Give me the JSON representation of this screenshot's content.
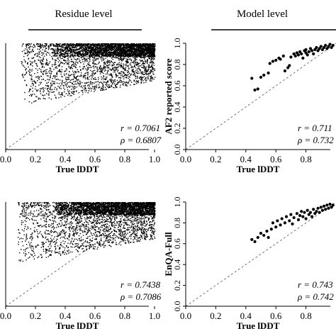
{
  "headers": {
    "left": "Residue level",
    "right": "Model level"
  },
  "colors": {
    "points": "#000000",
    "axes": "#000000",
    "reference_line": "#555555",
    "background": "#ffffff"
  },
  "chart_data": [
    {
      "id": "top-left",
      "type": "scatter",
      "level": "residue",
      "xlabel": "True lDDT",
      "ylabel": "",
      "xlim": [
        0,
        1
      ],
      "ylim": [
        0,
        1
      ],
      "x_ticks": [
        "0.0",
        "0.2",
        "0.4",
        "0.6",
        "0.8",
        "1.0"
      ],
      "y_ticks": [],
      "reference_line": "y = x",
      "stats": {
        "r": "r = 0.7061",
        "rho": "ρ = 0.6807"
      },
      "point_density": "very dense",
      "x_range_of_points": [
        0.1,
        1.0
      ],
      "y_range_of_points": [
        0.25,
        1.0
      ]
    },
    {
      "id": "top-right",
      "type": "scatter",
      "level": "model",
      "xlabel": "True lDDT",
      "ylabel": "AF2 reported score",
      "xlim": [
        0,
        1
      ],
      "ylim": [
        0,
        1
      ],
      "x_ticks": [
        "0.0",
        "0.2",
        "0.4",
        "0.6",
        "0.8"
      ],
      "y_ticks": [
        "0.0",
        "0.2",
        "0.4",
        "0.6",
        "0.8",
        "1.0"
      ],
      "reference_line": "y = x",
      "stats": {
        "r": "r = 0.711",
        "rho": "ρ = 0.732"
      },
      "points": [
        [
          0.44,
          0.67
        ],
        [
          0.46,
          0.56
        ],
        [
          0.48,
          0.57
        ],
        [
          0.5,
          0.68
        ],
        [
          0.52,
          0.7
        ],
        [
          0.55,
          0.72
        ],
        [
          0.56,
          0.81
        ],
        [
          0.58,
          0.83
        ],
        [
          0.6,
          0.84
        ],
        [
          0.62,
          0.86
        ],
        [
          0.63,
          0.85
        ],
        [
          0.65,
          0.88
        ],
        [
          0.66,
          0.74
        ],
        [
          0.68,
          0.77
        ],
        [
          0.69,
          0.79
        ],
        [
          0.7,
          0.87
        ],
        [
          0.72,
          0.9
        ],
        [
          0.73,
          0.88
        ],
        [
          0.74,
          0.91
        ],
        [
          0.75,
          0.89
        ],
        [
          0.76,
          0.92
        ],
        [
          0.77,
          0.9
        ],
        [
          0.78,
          0.86
        ],
        [
          0.79,
          0.93
        ],
        [
          0.8,
          0.91
        ],
        [
          0.8,
          0.94
        ],
        [
          0.81,
          0.89
        ],
        [
          0.82,
          0.92
        ],
        [
          0.83,
          0.95
        ],
        [
          0.84,
          0.93
        ],
        [
          0.85,
          0.9
        ],
        [
          0.86,
          0.94
        ],
        [
          0.87,
          0.96
        ],
        [
          0.88,
          0.93
        ],
        [
          0.89,
          0.95
        ],
        [
          0.9,
          0.97
        ],
        [
          0.91,
          0.94
        ],
        [
          0.92,
          0.96
        ],
        [
          0.93,
          0.98
        ],
        [
          0.94,
          0.95
        ],
        [
          0.95,
          0.97
        ],
        [
          0.96,
          0.99
        ],
        [
          0.97,
          0.96
        ],
        [
          0.98,
          0.98
        ]
      ]
    },
    {
      "id": "bottom-left",
      "type": "scatter",
      "level": "residue",
      "xlabel": "True lDDT",
      "ylabel": "",
      "xlim": [
        0,
        1
      ],
      "ylim": [
        0,
        1
      ],
      "x_ticks": [
        "0.0",
        "0.2",
        "0.4",
        "0.6",
        "0.8",
        "1.0"
      ],
      "y_ticks": [],
      "reference_line": "y = x",
      "stats": {
        "r": "r = 0.7438",
        "rho": "ρ = 0.7086"
      },
      "point_density": "very dense",
      "x_range_of_points": [
        0.08,
        1.0
      ],
      "y_range_of_points": [
        0.1,
        1.0
      ]
    },
    {
      "id": "bottom-right",
      "type": "scatter",
      "level": "model",
      "xlabel": "True lDDT",
      "ylabel": "EnQA-Full",
      "xlim": [
        0,
        1
      ],
      "ylim": [
        0,
        1
      ],
      "x_ticks": [
        "0.0",
        "0.2",
        "0.4",
        "0.6",
        "0.8"
      ],
      "y_ticks": [
        "0.0",
        "0.2",
        "0.4",
        "0.6",
        "0.8",
        "1.0"
      ],
      "reference_line": "y = x",
      "stats": {
        "r": "r = 0.743",
        "rho": "ρ = 0.742"
      },
      "points": [
        [
          0.44,
          0.64
        ],
        [
          0.46,
          0.62
        ],
        [
          0.48,
          0.66
        ],
        [
          0.5,
          0.7
        ],
        [
          0.52,
          0.68
        ],
        [
          0.54,
          0.72
        ],
        [
          0.55,
          0.66
        ],
        [
          0.57,
          0.74
        ],
        [
          0.58,
          0.8
        ],
        [
          0.6,
          0.76
        ],
        [
          0.61,
          0.82
        ],
        [
          0.63,
          0.78
        ],
        [
          0.64,
          0.84
        ],
        [
          0.66,
          0.8
        ],
        [
          0.67,
          0.86
        ],
        [
          0.69,
          0.82
        ],
        [
          0.7,
          0.88
        ],
        [
          0.71,
          0.79
        ],
        [
          0.72,
          0.85
        ],
        [
          0.74,
          0.89
        ],
        [
          0.75,
          0.83
        ],
        [
          0.76,
          0.87
        ],
        [
          0.77,
          0.91
        ],
        [
          0.78,
          0.86
        ],
        [
          0.79,
          0.9
        ],
        [
          0.8,
          0.84
        ],
        [
          0.81,
          0.92
        ],
        [
          0.82,
          0.88
        ],
        [
          0.83,
          0.9
        ],
        [
          0.84,
          0.86
        ],
        [
          0.85,
          0.93
        ],
        [
          0.86,
          0.89
        ],
        [
          0.87,
          0.91
        ],
        [
          0.88,
          0.94
        ],
        [
          0.89,
          0.9
        ],
        [
          0.9,
          0.95
        ],
        [
          0.91,
          0.92
        ],
        [
          0.92,
          0.96
        ],
        [
          0.93,
          0.93
        ],
        [
          0.94,
          0.97
        ],
        [
          0.95,
          0.94
        ],
        [
          0.96,
          0.98
        ],
        [
          0.97,
          0.95
        ],
        [
          0.98,
          0.97
        ]
      ]
    }
  ]
}
